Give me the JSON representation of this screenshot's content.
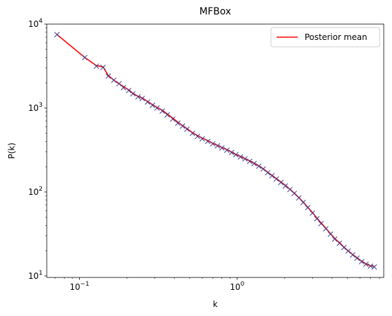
{
  "chart_data": {
    "type": "line",
    "title": "MFBox",
    "xlabel": "k",
    "ylabel": "P(k)",
    "xscale": "log",
    "yscale": "log",
    "xlim": [
      0.062,
      8.5
    ],
    "ylim": [
      9.6,
      10000
    ],
    "grid": false,
    "legend_position": "top-right",
    "x_ticks": [
      {
        "base": "10",
        "exp": "−1",
        "value": 0.1
      },
      {
        "base": "10",
        "exp": "0",
        "value": 1
      }
    ],
    "y_ticks": [
      {
        "base": "10",
        "exp": "1",
        "value": 10
      },
      {
        "base": "10",
        "exp": "2",
        "value": 100
      },
      {
        "base": "10",
        "exp": "3",
        "value": 1000
      },
      {
        "base": "10",
        "exp": "4",
        "value": 10000
      }
    ],
    "series": [
      {
        "name": "Posterior mean",
        "style": "line",
        "color": "#ff0000",
        "x": [
          0.072,
          0.108,
          0.128,
          0.141,
          0.152,
          0.165,
          0.178,
          0.19,
          0.205,
          0.218,
          0.235,
          0.25,
          0.27,
          0.29,
          0.31,
          0.335,
          0.36,
          0.39,
          0.42,
          0.45,
          0.48,
          0.52,
          0.56,
          0.6,
          0.65,
          0.7,
          0.75,
          0.8,
          0.86,
          0.92,
          0.98,
          1.05,
          1.12,
          1.2,
          1.28,
          1.37,
          1.46,
          1.56,
          1.66,
          1.77,
          1.89,
          2.02,
          2.16,
          2.3,
          2.46,
          2.62,
          2.8,
          3.0,
          3.2,
          3.4,
          3.65,
          3.9,
          4.15,
          4.45,
          4.75,
          5.05,
          5.4,
          5.75,
          6.15,
          6.55,
          7.0,
          7.4
        ],
        "y": [
          7500,
          4000,
          3200,
          3100,
          2450,
          2150,
          1950,
          1800,
          1650,
          1500,
          1380,
          1320,
          1200,
          1100,
          1020,
          940,
          850,
          760,
          680,
          620,
          570,
          510,
          470,
          440,
          410,
          380,
          360,
          340,
          320,
          300,
          280,
          265,
          250,
          235,
          220,
          205,
          190,
          172,
          158,
          145,
          132,
          120,
          108,
          97,
          86,
          76,
          66,
          57,
          49,
          43,
          37,
          32,
          28,
          25,
          22,
          20,
          18,
          16.5,
          15,
          14,
          13.2,
          13
        ]
      },
      {
        "name": "",
        "style": "marker-x",
        "color": "#3b3b8f",
        "x": [
          0.072,
          0.108,
          0.128,
          0.141,
          0.152,
          0.165,
          0.178,
          0.19,
          0.205,
          0.218,
          0.235,
          0.25,
          0.27,
          0.29,
          0.31,
          0.335,
          0.36,
          0.39,
          0.42,
          0.45,
          0.48,
          0.52,
          0.56,
          0.6,
          0.65,
          0.7,
          0.75,
          0.8,
          0.86,
          0.92,
          0.98,
          1.05,
          1.12,
          1.2,
          1.28,
          1.37,
          1.46,
          1.56,
          1.66,
          1.77,
          1.89,
          2.02,
          2.16,
          2.3,
          2.46,
          2.62,
          2.8,
          3.0,
          3.2,
          3.4,
          3.65,
          3.9,
          4.15,
          4.45,
          4.75,
          5.05,
          5.4,
          5.75,
          6.15,
          6.55,
          7.0,
          7.4
        ],
        "y": [
          7500,
          4000,
          3150,
          3050,
          2400,
          2150,
          1950,
          1750,
          1620,
          1480,
          1360,
          1300,
          1180,
          1080,
          1000,
          920,
          830,
          740,
          660,
          610,
          560,
          500,
          460,
          430,
          400,
          375,
          355,
          335,
          315,
          295,
          278,
          262,
          248,
          232,
          218,
          203,
          188,
          170,
          156,
          143,
          130,
          118,
          107,
          96,
          85,
          75,
          65,
          56,
          48,
          42,
          36.5,
          31.5,
          27.5,
          24.5,
          21.8,
          19.8,
          17.8,
          16.3,
          14.8,
          13.8,
          13.1,
          12.8
        ]
      }
    ]
  }
}
